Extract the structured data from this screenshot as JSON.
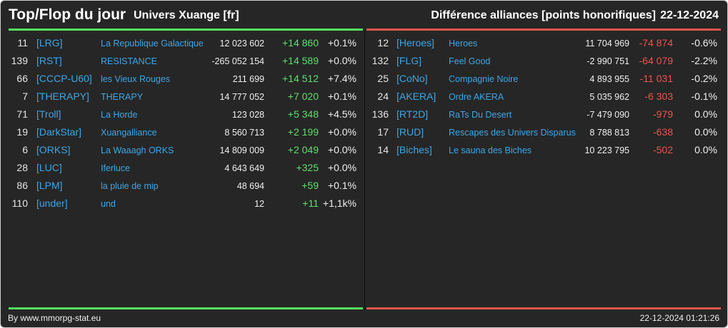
{
  "header": {
    "title": "Top/Flop du jour",
    "server": "Univers Xuange [fr]",
    "category": "Différence alliances [points honorifiques]",
    "date": "22-12-2024"
  },
  "colors": {
    "top_accent": "#55e05f",
    "flop_accent": "#e2554a",
    "link": "#3ea6e6"
  },
  "top": [
    {
      "rank": "11",
      "tag": "[LRG]",
      "name": "La Republique Galactique",
      "points": "12 023 602",
      "diff": "+14 860",
      "pct": "+0.1%"
    },
    {
      "rank": "139",
      "tag": "[RST]",
      "name": "RESISTANCE",
      "points": "-265 052 154",
      "diff": "+14 589",
      "pct": "+0.0%"
    },
    {
      "rank": "66",
      "tag": "[CCCP-U60]",
      "name": "les Vieux Rouges",
      "points": "211 699",
      "diff": "+14 512",
      "pct": "+7.4%"
    },
    {
      "rank": "7",
      "tag": "[THERAPY]",
      "name": "THERAPY",
      "points": "14 777 052",
      "diff": "+7 020",
      "pct": "+0.1%"
    },
    {
      "rank": "71",
      "tag": "[Troll]",
      "name": "La Horde",
      "points": "123 028",
      "diff": "+5 348",
      "pct": "+4.5%"
    },
    {
      "rank": "19",
      "tag": "[DarkStar]",
      "name": "Xuangalliance",
      "points": "8 560 713",
      "diff": "+2 199",
      "pct": "+0.0%"
    },
    {
      "rank": "6",
      "tag": "[ORKS]",
      "name": "La Waaagh ORKS",
      "points": "14 809 009",
      "diff": "+2 049",
      "pct": "+0.0%"
    },
    {
      "rank": "28",
      "tag": "[LUC]",
      "name": "Iferluce",
      "points": "4 643 649",
      "diff": "+325",
      "pct": "+0.0%"
    },
    {
      "rank": "86",
      "tag": "[LPM]",
      "name": "la pluie de mip",
      "points": "48 694",
      "diff": "+59",
      "pct": "+0.1%"
    },
    {
      "rank": "110",
      "tag": "[under]",
      "name": "und",
      "points": "12",
      "diff": "+11",
      "pct": "+1,1k%"
    }
  ],
  "flop": [
    {
      "rank": "12",
      "tag": "[Heroes]",
      "name": "Heroes",
      "points": "11 704 969",
      "diff": "-74 874",
      "pct": "-0.6%"
    },
    {
      "rank": "132",
      "tag": "[FLG]",
      "name": "Feel Good",
      "points": "-2 990 751",
      "diff": "-64 079",
      "pct": "-2.2%"
    },
    {
      "rank": "25",
      "tag": "[CoNo]",
      "name": "Compagnie Noire",
      "points": "4 893 955",
      "diff": "-11 031",
      "pct": "-0.2%"
    },
    {
      "rank": "24",
      "tag": "[AKERA]",
      "name": "Ordre AKERA",
      "points": "5 035 962",
      "diff": "-6 303",
      "pct": "-0.1%"
    },
    {
      "rank": "136",
      "tag": "[RT2D]",
      "name": "RaTs Du Desert",
      "points": "-7 479 090",
      "diff": "-979",
      "pct": "0.0%"
    },
    {
      "rank": "17",
      "tag": "[RUD]",
      "name": "Rescapes des Univers Disparus",
      "points": "8 788 813",
      "diff": "-638",
      "pct": "0.0%"
    },
    {
      "rank": "14",
      "tag": "[Biches]",
      "name": "Le sauna des Biches",
      "points": "10 223 795",
      "diff": "-502",
      "pct": "0.0%"
    }
  ],
  "footer": {
    "credit": "By www.mmorpg-stat.eu",
    "timestamp": "22-12-2024 01:21:26"
  }
}
